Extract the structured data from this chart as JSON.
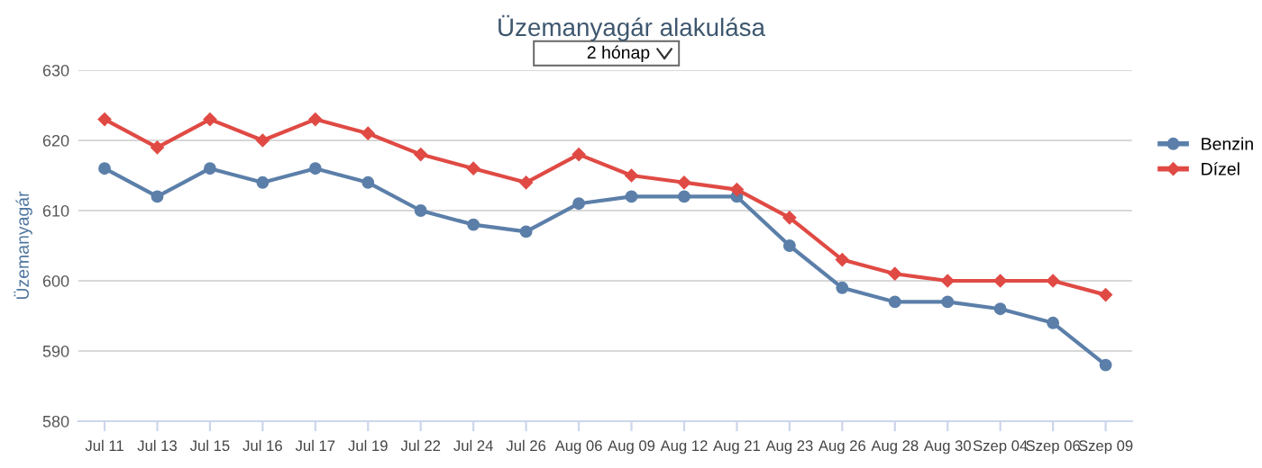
{
  "chart_data": {
    "type": "line",
    "title": "Üzemanyagár alakulása",
    "subtitle": "2 hónap",
    "ylabel": "Üzemanyagár",
    "categories": [
      "Jul 11",
      "Jul 13",
      "Jul 15",
      "Jul 16",
      "Jul 17",
      "Jul 19",
      "Jul 22",
      "Jul 24",
      "Jul 26",
      "Aug 06",
      "Aug 09",
      "Aug 12",
      "Aug 21",
      "Aug 23",
      "Aug 26",
      "Aug 28",
      "Aug 30",
      "Szep 04",
      "Szep 06",
      "Szep 09"
    ],
    "series": [
      {
        "name": "Benzin",
        "color": "#5b7fa9",
        "marker": "circle",
        "values": [
          616,
          612,
          616,
          614,
          616,
          614,
          610,
          608,
          607,
          611,
          612,
          612,
          612,
          605,
          599,
          597,
          597,
          596,
          594,
          588
        ]
      },
      {
        "name": "Dízel",
        "color": "#e04a44",
        "marker": "diamond",
        "values": [
          623,
          619,
          623,
          620,
          623,
          621,
          618,
          616,
          614,
          618,
          615,
          614,
          613,
          609,
          603,
          601,
          600,
          600,
          600,
          598
        ]
      }
    ],
    "ylim": [
      580,
      630
    ],
    "yticks": [
      580,
      590,
      600,
      610,
      620,
      630
    ],
    "grid": "y",
    "legend": "right"
  }
}
